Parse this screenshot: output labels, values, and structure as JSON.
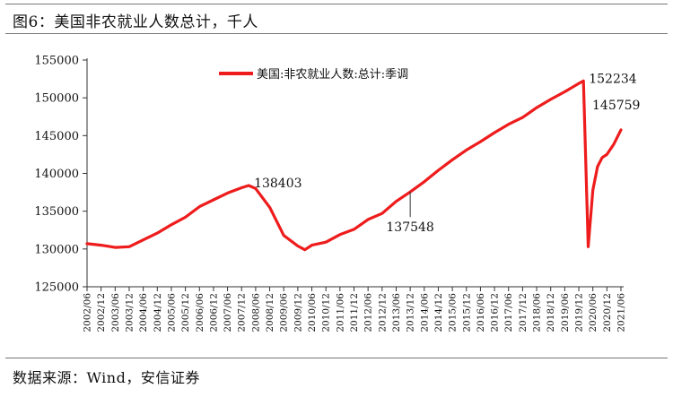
{
  "figure": {
    "title": "图6：美国非农就业人数总计，千人",
    "source": "数据来源：Wind，安信证券"
  },
  "chart_data": {
    "type": "line",
    "title": "",
    "xlabel": "",
    "ylabel": "",
    "ylim": [
      125000,
      155000
    ],
    "yticks": [
      125000,
      130000,
      135000,
      140000,
      145000,
      150000,
      155000
    ],
    "xticks": [
      "2002/06",
      "2002/12",
      "2003/06",
      "2003/12",
      "2004/06",
      "2004/12",
      "2005/06",
      "2005/12",
      "2006/06",
      "2006/12",
      "2007/06",
      "2007/12",
      "2008/06",
      "2008/12",
      "2009/06",
      "2009/12",
      "2010/06",
      "2010/12",
      "2011/06",
      "2011/12",
      "2012/06",
      "2012/12",
      "2013/06",
      "2013/12",
      "2014/06",
      "2014/12",
      "2015/06",
      "2015/12",
      "2016/06",
      "2016/12",
      "2017/06",
      "2017/12",
      "2018/06",
      "2018/12",
      "2019/06",
      "2019/12",
      "2020/06",
      "2020/12",
      "2021/06"
    ],
    "legend": {
      "position": "top-center"
    },
    "grid": false,
    "series": [
      {
        "name": "美国:非农就业人数:总计:季调",
        "color": "#ee1c1c",
        "points": [
          [
            "2002/06",
            130700
          ],
          [
            "2002/12",
            130500
          ],
          [
            "2003/06",
            130200
          ],
          [
            "2003/12",
            130300
          ],
          [
            "2004/06",
            131200
          ],
          [
            "2004/12",
            132100
          ],
          [
            "2005/06",
            133200
          ],
          [
            "2005/12",
            134200
          ],
          [
            "2006/06",
            135600
          ],
          [
            "2006/12",
            136500
          ],
          [
            "2007/06",
            137400
          ],
          [
            "2007/12",
            138100
          ],
          [
            "2008/03",
            138403
          ],
          [
            "2008/06",
            138000
          ],
          [
            "2008/12",
            135500
          ],
          [
            "2009/06",
            131800
          ],
          [
            "2009/12",
            130400
          ],
          [
            "2010/03",
            129900
          ],
          [
            "2010/06",
            130500
          ],
          [
            "2010/12",
            130900
          ],
          [
            "2011/06",
            131900
          ],
          [
            "2011/12",
            132600
          ],
          [
            "2012/06",
            133900
          ],
          [
            "2012/12",
            134700
          ],
          [
            "2013/06",
            136300
          ],
          [
            "2013/12",
            137548
          ],
          [
            "2014/06",
            138900
          ],
          [
            "2014/12",
            140400
          ],
          [
            "2015/06",
            141800
          ],
          [
            "2015/12",
            143100
          ],
          [
            "2016/06",
            144200
          ],
          [
            "2016/12",
            145400
          ],
          [
            "2017/06",
            146500
          ],
          [
            "2017/12",
            147400
          ],
          [
            "2018/06",
            148700
          ],
          [
            "2018/12",
            149800
          ],
          [
            "2019/06",
            150800
          ],
          [
            "2019/12",
            151900
          ],
          [
            "2020/02",
            152234
          ],
          [
            "2020/04",
            130300
          ],
          [
            "2020/06",
            137800
          ],
          [
            "2020/08",
            140900
          ],
          [
            "2020/10",
            142100
          ],
          [
            "2020/12",
            142500
          ],
          [
            "2021/03",
            143900
          ],
          [
            "2021/06",
            145759
          ]
        ]
      }
    ],
    "annotations": [
      {
        "text": "152234",
        "at": "2020/02",
        "value": 152234,
        "placement": "right"
      },
      {
        "text": "145759",
        "at": "2021/06",
        "value": 145759,
        "placement": "above"
      },
      {
        "text": "138403",
        "at": "2008/03",
        "value": 138403,
        "placement": "right"
      },
      {
        "text": "137548",
        "at": "2013/12",
        "value": 137548,
        "placement": "below-with-leader"
      }
    ]
  }
}
